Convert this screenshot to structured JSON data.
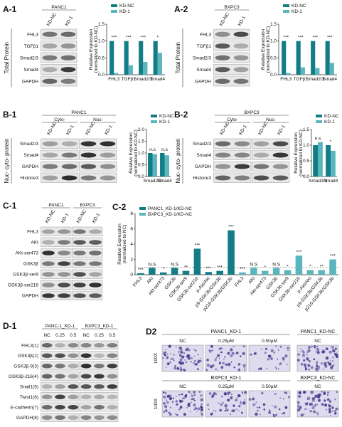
{
  "panel_labels": [
    "A-1",
    "A-2",
    "B-1",
    "B-2",
    "C-1",
    "C-2",
    "D-1",
    "D2"
  ],
  "blots": [
    {
      "cell_lines": [
        "PANC1"
      ],
      "lanes": [
        "KD-NC",
        "KD-1"
      ],
      "rows": [
        "FHL3",
        "TGFβ1",
        "Smad2/3",
        "Smad4",
        "GAPDH"
      ],
      "side_label": "Total Protein"
    },
    {
      "cell_lines": [
        "BXPC3"
      ],
      "lanes": [
        "KD-NC",
        "KD-1"
      ],
      "rows": [
        "FHL3",
        "TGFβ1",
        "Smad2/3",
        "Smad4",
        "GAPDH"
      ],
      "side_label": "Total Protein"
    },
    {
      "cell_lines": [
        "PANC1"
      ],
      "fractions": [
        "Cyto-",
        "Nuc-"
      ],
      "lanes": [
        "KD-NC",
        "KD-1",
        "KD-NC",
        "KD-1"
      ],
      "rows": [
        "Smad2/3",
        "Smad4",
        "GAPDH",
        "Histone3"
      ],
      "side_label": "Nuc- cyto- protein"
    },
    {
      "cell_lines": [
        "BXPC3"
      ],
      "fractions": [
        "Cyto-",
        "Nuc-"
      ],
      "lanes": [
        "KD-NC",
        "KD-1",
        "KD-NC",
        "KD-1"
      ],
      "rows": [
        "Smad2/3",
        "Smad4",
        "GAPDH",
        "Histone3"
      ],
      "side_label": "Nuc- cyto- protein"
    },
    {
      "cell_lines": [
        "PANC1",
        "BXPC3"
      ],
      "lanes": [
        "KD-NC",
        "KD-1",
        "KD-NC",
        "KD-1"
      ],
      "rows": [
        "FHL3",
        "AKt",
        "AKt-ser473",
        "GSK3β",
        "GSK3β-ser9",
        "GSK3β-ser216",
        "GAPDH"
      ]
    },
    {
      "cell_lines": [
        "PANC-1_KD-1",
        "BXPC3_KD-1"
      ],
      "lanes": [
        "NC",
        "0.25",
        "0.5",
        "NC",
        "0.25",
        "0.5"
      ],
      "rows": [
        "FHL3(1)",
        "GSK3β(2)",
        "GSK3β-9(3)",
        "GSK3β-216(4)",
        "Snail1(5)",
        "Twist1(6)",
        "E-cadherin(7)",
        "GAPDH(8)"
      ]
    }
  ],
  "micrographs": {
    "rows": [
      {
        "title": "PANC1_KD-1",
        "columns": [
          "NC",
          "0.25μM",
          "0.50μM"
        ],
        "control_title": "PANC1_KD-NC",
        "control_column": "NC",
        "magnification": "100X"
      },
      {
        "title": "BXPC3_KD-1",
        "columns": [
          "NC",
          "0.25μM",
          "0.50μM"
        ],
        "control_title": "BXPC3_KD-NC",
        "control_column": "NC",
        "magnification": "100X"
      }
    ]
  },
  "chart_data": [
    {
      "type": "bar",
      "ylabel": [
        "Relative Expression",
        "(normalized to KD-NC)"
      ],
      "categories": [
        "FHL3",
        "TGFβ1",
        "Smad2/3",
        "Smad4"
      ],
      "series": [
        {
          "name": "KD-NC",
          "color": "#137d86",
          "values": [
            1,
            1,
            1,
            1
          ]
        },
        {
          "name": "KD-1",
          "color": "#5ab5bc",
          "values": [
            0.05,
            0.28,
            0.38,
            0.65
          ]
        }
      ],
      "significance": [
        "***",
        "***",
        "***",
        "*"
      ],
      "ylim": [
        0,
        1.5
      ],
      "yticks": [
        {
          "value": 0,
          "label": "0.0"
        },
        {
          "value": 0.5,
          "label": "0.5"
        },
        {
          "value": 1,
          "label": "1.0"
        },
        {
          "value": 1.5,
          "label": "1.5"
        }
      ]
    },
    {
      "type": "bar",
      "ylabel": [
        "Relative Expression",
        "(normalized to KD-NC)"
      ],
      "categories": [
        "FHL3",
        "TGFβ1",
        "Smad2/3",
        "Smad4"
      ],
      "series": [
        {
          "name": "KD-NC",
          "color": "#137d86",
          "values": [
            1,
            1,
            1,
            1
          ]
        },
        {
          "name": "KD-1",
          "color": "#5ab5bc",
          "values": [
            0.05,
            0.22,
            0.2,
            0.35
          ]
        }
      ],
      "significance": [
        "***",
        "***",
        "***",
        "***"
      ],
      "ylim": [
        0,
        1.5
      ],
      "yticks": [
        {
          "value": 0,
          "label": "0.0"
        },
        {
          "value": 0.5,
          "label": "0.5"
        },
        {
          "value": 1,
          "label": "1.0"
        },
        {
          "value": 1.5,
          "label": "1.5"
        }
      ]
    },
    {
      "type": "bar",
      "ylabel": [
        "Relative Expression",
        "(normalized to KD-NC)"
      ],
      "categories": [
        "Smad2/3",
        "Smad4"
      ],
      "series": [
        {
          "name": "KD-NC",
          "color": "#137d86",
          "values": [
            1,
            1
          ]
        },
        {
          "name": "KD-1",
          "color": "#5ab5bc",
          "values": [
            0.95,
            0.9
          ]
        }
      ],
      "significance": [
        "n.s",
        "n.s"
      ],
      "ylim": [
        0,
        2
      ],
      "yticks": [
        {
          "value": 0,
          "label": "0.0"
        },
        {
          "value": 0.5,
          "label": "0.5"
        },
        {
          "value": 1,
          "label": "1.0"
        },
        {
          "value": 1.5,
          "label": "1.5"
        },
        {
          "value": 2,
          "label": "2.0"
        }
      ]
    },
    {
      "type": "bar",
      "ylabel": [
        "Relative Expression",
        "(normalized to KD-NC)"
      ],
      "categories": [
        "Smad2/3",
        "Smad4"
      ],
      "series": [
        {
          "name": "KD-NC",
          "color": "#137d86",
          "values": [
            1,
            1
          ]
        },
        {
          "name": "KD-1",
          "color": "#5ab5bc",
          "values": [
            1.1,
            0.82
          ]
        }
      ],
      "significance": [
        "n.s",
        "*"
      ],
      "ylim": [
        0,
        1.5
      ],
      "yticks": [
        {
          "value": 0,
          "label": "0.0"
        },
        {
          "value": 0.5,
          "label": "0.5"
        },
        {
          "value": 1,
          "label": "1.0"
        },
        {
          "value": 1.5,
          "label": "1.5"
        }
      ]
    },
    {
      "type": "bar",
      "ylabel": [
        "Relative Expression",
        "(normalized to NC)"
      ],
      "categories": [
        "FHL3",
        "AKt",
        "Akt-ser473",
        "GSK3b",
        "GSK3b-ser9",
        "GSK3b-ser216",
        "p-Akt/Akt",
        "p9-GSK3b/GSK3b",
        "p216-GSK3b/GSK3b",
        "FHL3",
        "AKt",
        "Akt-ser473",
        "GSK3b",
        "GSK3b-ser9",
        "GSK3b-ser216",
        "p-Akt/AKt",
        "p9-GSK3b/GSK3b",
        "p216-GSK3b/GSK3b"
      ],
      "series": [
        {
          "name": "PANC1_KD-1/KD-NC",
          "color": "#137d86",
          "values": [
            0.2,
            0.9,
            0.3,
            0.9,
            0.5,
            3.4,
            0.35,
            0.5,
            5.8,
            null,
            null,
            null,
            null,
            null,
            null,
            null,
            null,
            null
          ],
          "significance": [
            "***",
            "N.S",
            "*",
            "N.S",
            "**",
            "***",
            "***",
            "***",
            "***",
            null,
            null,
            null,
            null,
            null,
            null,
            null,
            null,
            null
          ]
        },
        {
          "name": "BXPC3_KD-1/KD-NC",
          "color": "#5ab5bc",
          "values": [
            null,
            null,
            null,
            null,
            null,
            null,
            null,
            null,
            null,
            0.3,
            0.9,
            0.5,
            0.9,
            0.6,
            2.5,
            0.6,
            0.6,
            2.0
          ],
          "significance": [
            null,
            null,
            null,
            null,
            null,
            null,
            null,
            null,
            null,
            "***",
            "N.S",
            "*",
            "N.S",
            "*",
            "***",
            "*",
            "**",
            "***"
          ]
        }
      ],
      "reference_line": 1,
      "ylim": [
        0,
        8
      ],
      "yticks": [
        0,
        2,
        4,
        6,
        8
      ]
    }
  ]
}
